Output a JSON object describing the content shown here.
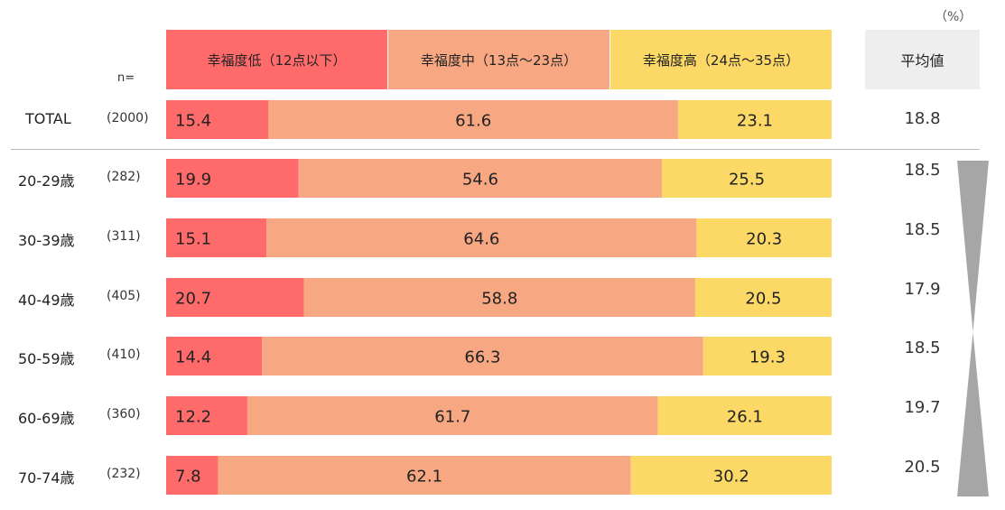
{
  "chart_data": {
    "type": "bar",
    "stacked": true,
    "orientation": "horizontal",
    "unit_label": "（%）",
    "n_label": "n=",
    "avg_header": "平均値",
    "series": [
      {
        "name": "幸福度低（12点以下）",
        "color": "#ff6b6b"
      },
      {
        "name": "幸福度中（13点～23点）",
        "color": "#f7a883"
      },
      {
        "name": "幸福度高（24点～35点）",
        "color": "#fcd966"
      }
    ],
    "rows": [
      {
        "label": "TOTAL",
        "n": "(2000)",
        "values": [
          15.4,
          61.6,
          23.1
        ],
        "avg": "18.8"
      },
      {
        "label": "20-29歳",
        "n": "(282)",
        "values": [
          19.9,
          54.6,
          25.5
        ],
        "avg": "18.5"
      },
      {
        "label": "30-39歳",
        "n": "(311)",
        "values": [
          15.1,
          64.6,
          20.3
        ],
        "avg": "18.5"
      },
      {
        "label": "40-49歳",
        "n": "(405)",
        "values": [
          20.7,
          58.8,
          20.5
        ],
        "avg": "17.9"
      },
      {
        "label": "50-59歳",
        "n": "(410)",
        "values": [
          14.4,
          66.3,
          19.3
        ],
        "avg": "18.5"
      },
      {
        "label": "60-69歳",
        "n": "(360)",
        "values": [
          12.2,
          61.7,
          26.1
        ],
        "avg": "19.7"
      },
      {
        "label": "70-74歳",
        "n": "(232)",
        "values": [
          7.8,
          62.1,
          30.2
        ],
        "avg": "20.5"
      }
    ],
    "trend_marker_color": "#a6a6a6"
  }
}
